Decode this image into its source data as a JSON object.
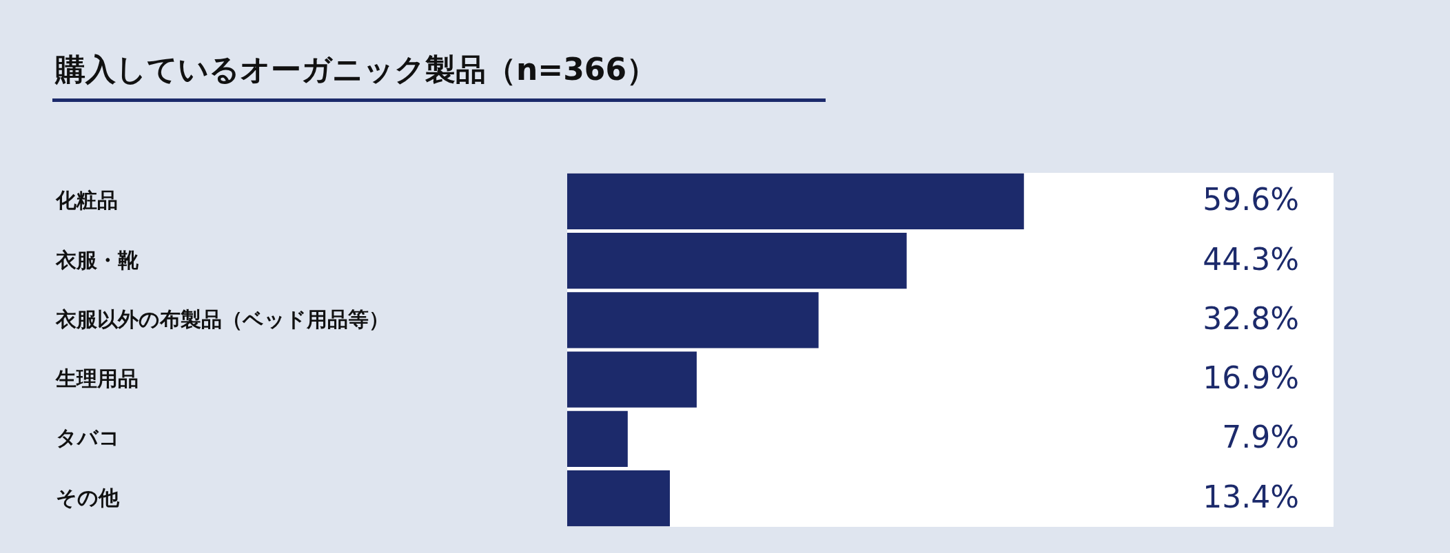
{
  "chart_data": {
    "type": "bar",
    "orientation": "horizontal",
    "title": "購入しているオーガニック製品（n=366）",
    "categories": [
      "化粧品",
      "衣服・靴",
      "衣服以外の布製品（ベッド用品等）",
      "生理用品",
      "タバコ",
      "その他"
    ],
    "values": [
      59.6,
      44.3,
      32.8,
      16.9,
      7.9,
      13.4
    ],
    "value_labels": [
      "59.6%",
      "44.3%",
      "32.8%",
      "16.9%",
      "7.9%",
      "13.4%"
    ],
    "color": "#1c2a6b",
    "xlim": [
      0,
      100
    ]
  }
}
